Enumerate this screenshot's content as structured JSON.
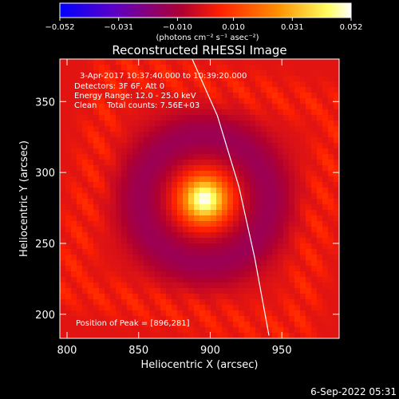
{
  "chart_data": {
    "type": "heatmap",
    "title": "Reconstructed RHESSI Image",
    "colorbar": {
      "tick_labels": [
        "−0.052",
        "−0.031",
        "−0.010",
        "0.010",
        "0.031",
        "0.052"
      ],
      "ticks": [
        -0.052,
        -0.031,
        -0.01,
        0.01,
        0.031,
        0.052
      ],
      "range": [
        -0.052,
        0.052
      ],
      "unit_label": "(photons cm⁻² s⁻¹ asec⁻²)",
      "colors": [
        "#0000ff",
        "#5a00c8",
        "#b00030",
        "#ff2000",
        "#ff9000",
        "#ffff60",
        "#ffffff"
      ]
    },
    "xlabel": "Heliocentric X (arcsec)",
    "ylabel": "Heliocentric Y (arcsec)",
    "xlim": [
      795,
      990
    ],
    "ylim": [
      183,
      380
    ],
    "x_ticks": [
      800,
      850,
      900,
      950
    ],
    "y_ticks": [
      200,
      250,
      300,
      350
    ],
    "x_tick_labels": [
      "800",
      "850",
      "900",
      "950"
    ],
    "y_tick_labels": [
      "200",
      "250",
      "300",
      "350"
    ],
    "annotations": [
      "3-Apr-2017 10:37:40.000 to 10:39:20.000",
      "Detectors: 3F 6F, Att 0",
      "Energy Range: 12.0 - 25.0 keV",
      "Clean    Total counts: 7.56E+03"
    ],
    "peak_label": "Position of Peak = [896,281]",
    "peak": {
      "x": 896,
      "y": 281
    },
    "limb_curve": [
      [
        883,
        390
      ],
      [
        905,
        340
      ],
      [
        920,
        290
      ],
      [
        931,
        240
      ],
      [
        941,
        185
      ]
    ],
    "grid": false
  },
  "footer": {
    "date": "6-Sep-2022 05:31"
  }
}
